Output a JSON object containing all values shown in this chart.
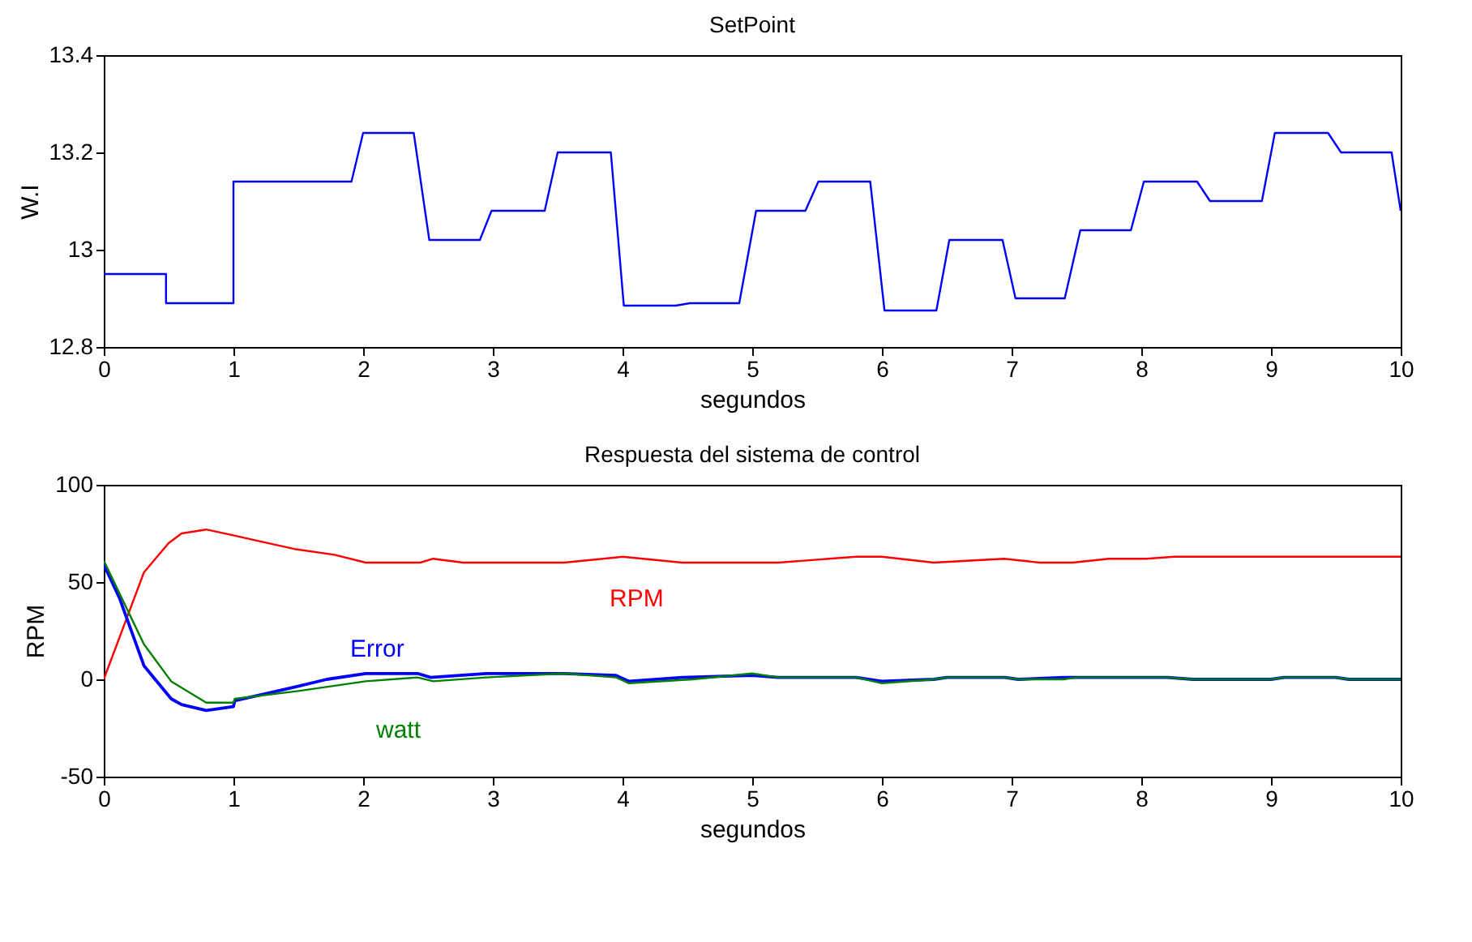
{
  "chart_data": [
    {
      "type": "line",
      "title": "SetPoint",
      "xlabel": "segundos",
      "ylabel": "W.I",
      "grid": false,
      "xlim": [
        0,
        10
      ],
      "xticks": [
        0,
        1,
        2,
        3,
        4,
        5,
        6,
        7,
        8,
        9,
        10
      ],
      "ylim": [
        12.8,
        13.4
      ],
      "yticks": [
        12.8,
        13,
        13.2,
        13.4
      ],
      "series": [
        {
          "color": "#0000ff",
          "x": [
            0,
            0.48,
            0.48,
            1.0,
            1.0,
            1.91,
            2.0,
            2.39,
            2.51,
            2.9,
            2.99,
            3.4,
            3.5,
            3.91,
            4.01,
            4.41,
            4.52,
            4.9,
            5.03,
            5.41,
            5.51,
            5.91,
            6.02,
            6.42,
            6.52,
            6.93,
            7.03,
            7.41,
            7.53,
            7.92,
            8.02,
            8.43,
            8.53,
            8.93,
            9.03,
            9.44,
            9.54,
            9.93,
            10
          ],
          "values": [
            12.95,
            12.95,
            12.89,
            12.89,
            13.14,
            13.14,
            13.24,
            13.24,
            13.02,
            13.02,
            13.08,
            13.08,
            13.2,
            13.2,
            12.885,
            12.885,
            12.89,
            12.89,
            13.08,
            13.08,
            13.14,
            13.14,
            12.875,
            12.875,
            13.02,
            13.02,
            12.9,
            12.9,
            13.04,
            13.04,
            13.14,
            13.14,
            13.1,
            13.1,
            13.24,
            13.24,
            13.2,
            13.2,
            13.08
          ]
        }
      ]
    },
    {
      "type": "line",
      "title": "Respuesta del sistema de control",
      "xlabel": "segundos",
      "ylabel": "RPM",
      "grid": false,
      "xlim": [
        0,
        10
      ],
      "xticks": [
        0,
        1,
        2,
        3,
        4,
        5,
        6,
        7,
        8,
        9,
        10
      ],
      "ylim": [
        -50,
        100
      ],
      "yticks": [
        -50,
        0,
        50,
        100
      ],
      "series": [
        {
          "name": "RPM",
          "color": "#ff0000",
          "x": [
            0,
            0.31,
            0.5,
            0.6,
            0.79,
            1.0,
            1.2,
            1.47,
            1.78,
            2.02,
            2.44,
            2.54,
            2.77,
            3.55,
            4.0,
            4.46,
            5.0,
            5.2,
            5.8,
            6.0,
            6.4,
            6.94,
            7.22,
            7.47,
            7.75,
            8.04,
            8.25,
            10
          ],
          "values": [
            0,
            55,
            70,
            75,
            77,
            74,
            71,
            67,
            64,
            60,
            60,
            62,
            60,
            60,
            63,
            60,
            60,
            60,
            63,
            63,
            60,
            62,
            60,
            60,
            62,
            62,
            63,
            63
          ]
        },
        {
          "name": "Error",
          "color": "#0000ff",
          "x": [
            0,
            0.12,
            0.31,
            0.52,
            0.6,
            0.79,
            1.0,
            1.01,
            1.47,
            1.72,
            2.02,
            2.42,
            2.52,
            2.95,
            3.22,
            3.55,
            3.95,
            4.05,
            4.46,
            5.0,
            5.2,
            5.8,
            6.0,
            6.4,
            6.5,
            6.95,
            7.05,
            7.4,
            7.5,
            8.2,
            8.4,
            9.0,
            9.1,
            9.5,
            9.6,
            10
          ],
          "values": [
            59,
            42,
            7,
            -10,
            -13,
            -16,
            -14,
            -11,
            -4,
            0,
            3,
            3,
            1,
            3,
            3,
            3,
            2,
            -1,
            1,
            2,
            1,
            1,
            -1,
            0,
            1,
            1,
            0,
            1,
            1,
            1,
            0,
            0,
            1,
            1,
            0,
            0
          ]
        },
        {
          "name": "watt",
          "color": "#008000",
          "x": [
            0,
            0.31,
            0.52,
            0.79,
            1.0,
            1.01,
            1.5,
            2.02,
            2.42,
            2.54,
            2.95,
            3.55,
            3.95,
            4.05,
            4.54,
            5.0,
            5.2,
            5.8,
            6.0,
            6.4,
            6.5,
            6.95,
            7.05,
            7.4,
            7.5,
            8.2,
            8.4,
            9.0,
            9.1,
            9.5,
            9.6,
            10
          ],
          "values": [
            61,
            18,
            -1,
            -12,
            -12,
            -10,
            -6,
            -1,
            1,
            -1,
            1,
            3,
            1,
            -2,
            0,
            3,
            1,
            1,
            -2,
            0,
            1,
            1,
            0,
            0,
            1,
            1,
            0,
            0,
            1,
            1,
            0,
            0
          ]
        }
      ]
    }
  ]
}
